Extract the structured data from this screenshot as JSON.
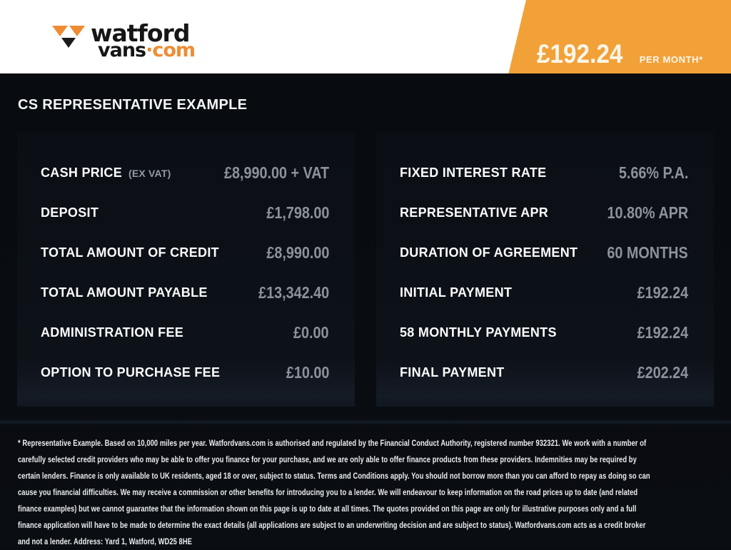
{
  "header": {
    "logo": {
      "line1": "watford",
      "line2_dark": "vans",
      "line2_orange": "·com"
    },
    "price_banner": {
      "price": "£192.24",
      "suffix": "PER MONTH*"
    }
  },
  "title": "CS REPRESENTATIVE EXAMPLE",
  "finance": {
    "left_rows": [
      {
        "label": "CASH PRICE",
        "note": "(EX VAT)",
        "value": "£8,990.00 + VAT"
      },
      {
        "label": "DEPOSIT",
        "value": "£1,798.00"
      },
      {
        "label": "TOTAL AMOUNT OF CREDIT",
        "value": "£8,990.00"
      },
      {
        "label": "TOTAL AMOUNT PAYABLE",
        "value": "£13,342.40"
      },
      {
        "label": "ADMINISTRATION FEE",
        "value": "£0.00"
      },
      {
        "label": "OPTION TO PURCHASE FEE",
        "value": "£10.00"
      }
    ],
    "right_rows": [
      {
        "label": "FIXED INTEREST RATE",
        "value": "5.66% P.A."
      },
      {
        "label": "REPRESENTATIVE APR",
        "value": "10.80% APR"
      },
      {
        "label": "DURATION OF AGREEMENT",
        "value": "60 MONTHS"
      },
      {
        "label": "INITIAL PAYMENT",
        "value": "£192.24"
      },
      {
        "label": "58 MONTHLY PAYMENTS",
        "value": "£192.24"
      },
      {
        "label": "FINAL PAYMENT",
        "value": "£202.24"
      }
    ]
  },
  "footer": {
    "disclaimer": "* Representative Example. Based on 10,000 miles per year. Watfordvans.com is authorised and regulated by the Financial Conduct Authority, registered number 932321. We work with a number of carefully selected credit providers who may be able to offer you finance for your purchase, and we are only able to offer finance products from these providers. Indemnities may be required by certain lenders. Finance is only available to UK residents, aged 18 or over, subject to status. Terms and Conditions apply. You should not borrow more than you can afford to repay as doing so can cause you financial difficulties. We may receive a commission or other benefits for introducing you to a lender. We will endeavour to keep information on the road prices up to date (and related finance examples) but we cannot guarantee that the information shown on this page is up to date at all times. The quotes provided on this page are only for illustrative purposes only and a full finance application will have to be made to determine the exact details (all applications are subject to an underwriting decision and are subject to status). Watfordvans.com acts as a credit broker and not a lender. Address: Yard 1, Watford, WD25 8HE"
  },
  "colors": {
    "accent_orange": "#F2A138",
    "logo_orange": "#EE8C33",
    "background": "#080B10",
    "panel": "#0D1118",
    "value_gray": "#8C929B"
  }
}
